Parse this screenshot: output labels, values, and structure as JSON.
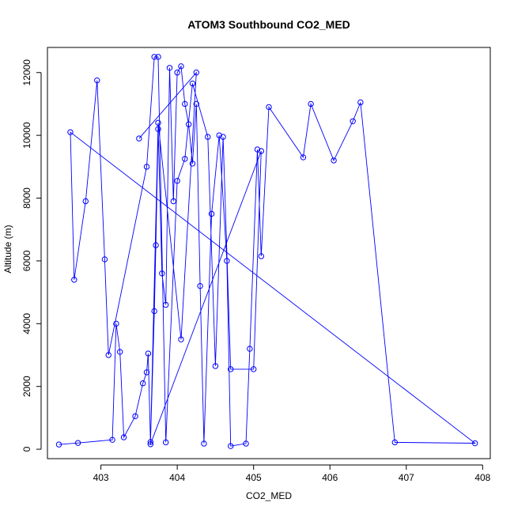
{
  "chart_data": {
    "type": "line",
    "title": "ATOM3 Southbound CO2_MED",
    "xlabel": "CO2_MED",
    "ylabel": "Altitude (m)",
    "xlim": [
      402.3,
      408.1
    ],
    "ylim": [
      -300,
      12800
    ],
    "xticks": [
      403,
      404,
      405,
      406,
      407,
      408
    ],
    "yticks": [
      0,
      2000,
      4000,
      6000,
      8000,
      10000,
      12000
    ],
    "xtick_labels": [
      "403",
      "404",
      "405",
      "406",
      "407",
      "408"
    ],
    "ytick_labels": [
      "0",
      "2000",
      "4000",
      "6000",
      "8000",
      "10000",
      "12000"
    ],
    "colors": {
      "series": "#0000ff",
      "frame": "#000000"
    },
    "series": [
      {
        "marker": "open-circle",
        "x": [
          402.45,
          402.7,
          403.15,
          403.2,
          403.25,
          403.3,
          403.45,
          403.55,
          403.6,
          403.62,
          403.65,
          403.7,
          403.72,
          403.75,
          403.8,
          403.85,
          403.9,
          403.95,
          404.0,
          404.05,
          404.1,
          404.15,
          404.2,
          404.25,
          404.3,
          404.35,
          404.45,
          404.55,
          404.65,
          404.7,
          404.9,
          404.95,
          405.05,
          405.1,
          405.2,
          405.65,
          405.75,
          406.05,
          406.3,
          406.4,
          406.85,
          407.9,
          402.6,
          402.65,
          402.8,
          402.95,
          403.05,
          403.1,
          403.6,
          403.7,
          403.75,
          403.85,
          404.0,
          404.1,
          404.2,
          404.4,
          404.5,
          404.6,
          404.7,
          405.0,
          405.1,
          403.65,
          403.75,
          404.05,
          404.25,
          403.5
        ],
        "y": [
          150,
          200,
          300,
          4000,
          3100,
          380,
          1050,
          2100,
          2450,
          3050,
          230,
          4400,
          6500,
          10200,
          5600,
          4600,
          12150,
          7900,
          12000,
          12200,
          11000,
          10350,
          9100,
          11000,
          5200,
          180,
          7500,
          10000,
          6000,
          100,
          180,
          3200,
          9550,
          6150,
          10900,
          9300,
          11000,
          9200,
          10450,
          11050,
          220,
          190,
          10100,
          5400,
          7900,
          11750,
          6050,
          3000,
          9000,
          12500,
          12500,
          220,
          8550,
          9250,
          11650,
          9950,
          2650,
          9950,
          2550,
          2550,
          9500,
          160,
          10400,
          3500,
          12000,
          9900
        ]
      }
    ]
  }
}
